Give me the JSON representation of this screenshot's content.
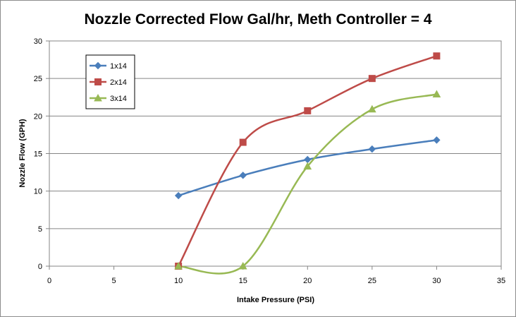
{
  "chart_data": {
    "type": "scatter",
    "title": "Nozzle Corrected Flow Gal/hr, Meth Controller = 4",
    "xlabel": "Intake Pressure (PSI)",
    "ylabel": "Nozzle Flow (GPH)",
    "xlim": [
      0,
      35
    ],
    "ylim": [
      0,
      30
    ],
    "xticks": [
      "0",
      "5",
      "10",
      "15",
      "20",
      "25",
      "30",
      "35"
    ],
    "yticks": [
      "0",
      "5",
      "10",
      "15",
      "20",
      "25",
      "30"
    ],
    "grid": "horizontal",
    "legend_position": "top-left",
    "smooth_lines": true,
    "series": [
      {
        "name": "1x14",
        "color": "#4a7ebb",
        "marker": "diamond",
        "x": [
          10,
          15,
          20,
          25,
          30
        ],
        "y": [
          9.4,
          12.1,
          14.2,
          15.6,
          16.8
        ]
      },
      {
        "name": "2x14",
        "color": "#be4b48",
        "marker": "square",
        "x": [
          10,
          15,
          20,
          25,
          30
        ],
        "y": [
          0,
          16.5,
          20.7,
          25.0,
          28.0
        ]
      },
      {
        "name": "3x14",
        "color": "#98b954",
        "marker": "triangle",
        "x": [
          10,
          15,
          20,
          25,
          30
        ],
        "y": [
          0,
          0,
          13.3,
          20.9,
          22.9
        ]
      }
    ]
  }
}
